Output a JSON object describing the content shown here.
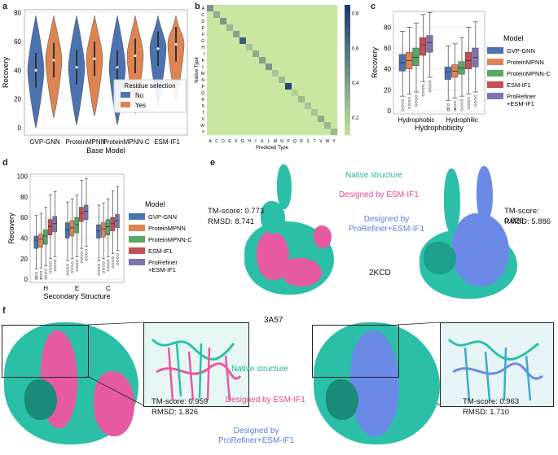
{
  "panel_labels": {
    "a": "a",
    "b": "b",
    "c": "c",
    "d": "d",
    "e": "e",
    "f": "f"
  },
  "colors": {
    "no": "#4c72b0",
    "yes": "#dd8452",
    "gvp": "#4c72b0",
    "mpnn": "#dd8452",
    "mpnnc": "#55a868",
    "esm": "#c44e52",
    "pro": "#8172b2",
    "native": "#2bbfa8",
    "designed_esm": "#e55aa0",
    "designed_pro": "#6a8ae6"
  },
  "chart_data": [
    {
      "panel": "a",
      "type": "violin",
      "xlabel": "Base Model",
      "ylabel": "Recovery",
      "categories": [
        "GVP-GNN",
        "ProteinMPNN",
        "ProteinMPNN-C",
        "ESM-IF1"
      ],
      "ylim": [
        -5,
        82
      ],
      "yticks": [
        0,
        20,
        40,
        60,
        80
      ],
      "legend": {
        "title": "Residue selection",
        "position": "bottom-right",
        "entries": [
          "No",
          "Yes"
        ]
      },
      "series": [
        {
          "name": "No",
          "medians": [
            40,
            42,
            42,
            55
          ]
        },
        {
          "name": "Yes",
          "medians": [
            47,
            48,
            50,
            58
          ]
        }
      ]
    },
    {
      "panel": "b",
      "type": "heatmap",
      "xlabel": "Predicted Type",
      "ylabel": "Native Type",
      "x_labels": [
        "A",
        "C",
        "D",
        "E",
        "F",
        "G",
        "H",
        "I",
        "K",
        "L",
        "M",
        "N",
        "P",
        "Q",
        "R",
        "S",
        "T",
        "V",
        "W",
        "Y"
      ],
      "y_labels": [
        "A",
        "C",
        "D",
        "E",
        "F",
        "G",
        "H",
        "I",
        "K",
        "L",
        "M",
        "N",
        "P",
        "Q",
        "R",
        "S",
        "T",
        "V",
        "W",
        "Y"
      ],
      "colorbar_ticks": [
        "0.2",
        "0.4",
        "0.6",
        "0.8"
      ],
      "diagonal": [
        0.45,
        0.35,
        0.45,
        0.3,
        0.4,
        0.7,
        0.25,
        0.35,
        0.4,
        0.45,
        0.25,
        0.3,
        0.8,
        0.2,
        0.3,
        0.25,
        0.25,
        0.35,
        0.3,
        0.3
      ]
    },
    {
      "panel": "c",
      "type": "box",
      "xlabel": "Hydrophobicity",
      "ylabel": "Recovery",
      "categories": [
        "Hydrophobic",
        "Hydrophilic"
      ],
      "ylim": [
        -3,
        95
      ],
      "yticks": [
        0,
        20,
        40,
        60,
        80
      ],
      "legend": {
        "title": "Model",
        "position": "right",
        "entries": [
          "GVP-GNN",
          "ProteinMPNN",
          "ProteinMPNN-C",
          "ESM-IF1",
          "ProRefiner\n+ESM-IF1"
        ]
      },
      "series": [
        {
          "name": "GVP-GNN",
          "q1": [
            38,
            30
          ],
          "median": [
            46,
            37
          ],
          "q3": [
            54,
            42
          ],
          "whislo": [
            14,
            10
          ],
          "whishi": [
            76,
            62
          ]
        },
        {
          "name": "ProteinMPNN",
          "q1": [
            40,
            32
          ],
          "median": [
            48,
            38
          ],
          "q3": [
            56,
            44
          ],
          "whislo": [
            16,
            12
          ],
          "whishi": [
            80,
            64
          ]
        },
        {
          "name": "ProteinMPNN-C",
          "q1": [
            43,
            35
          ],
          "median": [
            51,
            41
          ],
          "q3": [
            60,
            47
          ],
          "whislo": [
            18,
            14
          ],
          "whishi": [
            84,
            70
          ]
        },
        {
          "name": "ESM-IF1",
          "q1": [
            53,
            40
          ],
          "median": [
            63,
            48
          ],
          "q3": [
            70,
            56
          ],
          "whislo": [
            28,
            16
          ],
          "whishi": [
            92,
            80
          ]
        },
        {
          "name": "ProRefiner\n+ESM-IF1",
          "q1": [
            56,
            42
          ],
          "median": [
            65,
            51
          ],
          "q3": [
            72,
            60
          ],
          "whislo": [
            32,
            18
          ],
          "whishi": [
            94,
            85
          ]
        }
      ]
    },
    {
      "panel": "d",
      "type": "box",
      "xlabel": "Secondary Structure",
      "ylabel": "Recovery",
      "categories": [
        "H",
        "E",
        "C"
      ],
      "ylim": [
        -3,
        102
      ],
      "yticks": [
        0,
        20,
        40,
        60,
        80,
        100
      ],
      "legend": {
        "title": "Model",
        "position": "right",
        "entries": [
          "GVP-GNN",
          "ProteinMPNN",
          "ProteinMPNN-C",
          "ESM-IF1",
          "ProRefiner\n+ESM-IF1"
        ]
      },
      "series": [
        {
          "name": "GVP-GNN",
          "q1": [
            30,
            40,
            40
          ],
          "median": [
            38,
            48,
            47
          ],
          "q3": [
            42,
            55,
            53
          ],
          "whislo": [
            10,
            18,
            18
          ],
          "whishi": [
            62,
            75,
            72
          ]
        },
        {
          "name": "ProteinMPNN",
          "q1": [
            31,
            42,
            41
          ],
          "median": [
            39,
            50,
            49
          ],
          "q3": [
            44,
            57,
            55
          ],
          "whislo": [
            11,
            20,
            20
          ],
          "whishi": [
            64,
            78,
            74
          ]
        },
        {
          "name": "ProteinMPNN-C",
          "q1": [
            34,
            45,
            43
          ],
          "median": [
            42,
            53,
            51
          ],
          "q3": [
            48,
            60,
            58
          ],
          "whislo": [
            13,
            22,
            22
          ],
          "whishi": [
            70,
            82,
            78
          ]
        },
        {
          "name": "ESM-IF1",
          "q1": [
            43,
            56,
            47
          ],
          "median": [
            51,
            64,
            54
          ],
          "q3": [
            58,
            70,
            60
          ],
          "whislo": [
            20,
            30,
            25
          ],
          "whishi": [
            82,
            96,
            86
          ]
        },
        {
          "name": "ProRefiner\n+ESM-IF1",
          "q1": [
            46,
            58,
            50
          ],
          "median": [
            54,
            66,
            57
          ],
          "q3": [
            61,
            72,
            63
          ],
          "whislo": [
            22,
            32,
            28
          ],
          "whishi": [
            85,
            98,
            90
          ]
        }
      ]
    }
  ],
  "panel_e": {
    "native": "Native structure",
    "designed_esm": "Designed by ESM-IF1",
    "designed_pro": "Designed by\nProRefiner+ESM-IF1",
    "left_tm": "TM-score: 0.773",
    "left_rmsd": "RMSD: 8.741",
    "right_tm": "TM-score: 0.826",
    "right_rmsd": "RMSD: 5.886",
    "pdb": "2KCD"
  },
  "panel_f": {
    "pdb": "3A57",
    "native": "Native structure",
    "designed_esm": "Designed by ESM-IF1",
    "designed_pro": "Designed by\nProRefiner+ESM-IF1",
    "left_tm": "TM-score: 0.959",
    "left_rmsd": "RMSD: 1.826",
    "right_tm": "TM-score: 0.963",
    "right_rmsd": "RMSD: 1.710"
  }
}
